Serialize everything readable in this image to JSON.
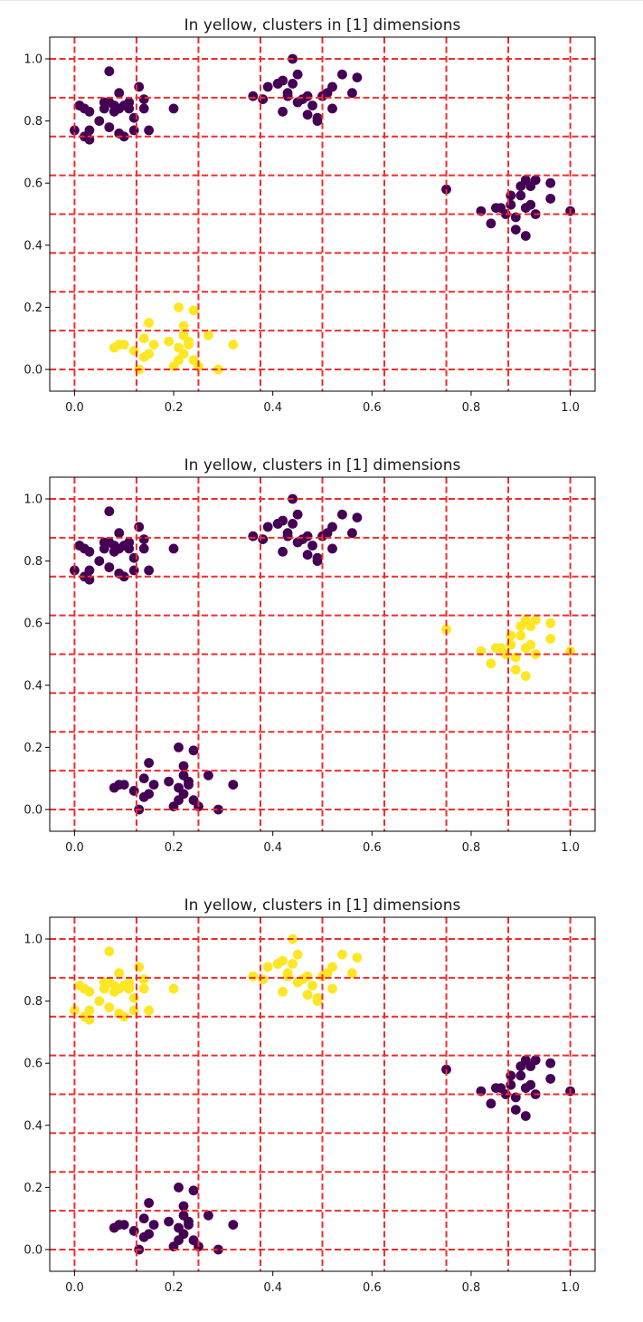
{
  "colors": {
    "highlight": "#fde725",
    "base": "#440154",
    "grid": "#ef2d2d",
    "axis": "#000000"
  },
  "chart_data": [
    {
      "type": "scatter",
      "title": "In yellow, clusters in [1] dimensions",
      "xlabel": "",
      "ylabel": "",
      "xlim": [
        -0.05,
        1.05
      ],
      "ylim": [
        -0.07,
        1.07
      ],
      "xticks": [
        0.0,
        0.2,
        0.4,
        0.6,
        0.8,
        1.0
      ],
      "xtick_labels": [
        "0.0",
        "0.2",
        "0.4",
        "0.6",
        "0.8",
        "1.0"
      ],
      "yticks": [
        0.0,
        0.2,
        0.4,
        0.6,
        0.8,
        1.0
      ],
      "ytick_labels": [
        "0.0",
        "0.2",
        "0.4",
        "0.6",
        "0.8",
        "1.0"
      ],
      "grid": "dashed red lines every 0.125 on both axes",
      "highlighted_cluster": "C"
    },
    {
      "type": "scatter",
      "title": "In yellow, clusters in [1] dimensions",
      "xlabel": "",
      "ylabel": "",
      "xlim": [
        -0.05,
        1.05
      ],
      "ylim": [
        -0.07,
        1.07
      ],
      "xticks": [
        0.0,
        0.2,
        0.4,
        0.6,
        0.8,
        1.0
      ],
      "xtick_labels": [
        "0.0",
        "0.2",
        "0.4",
        "0.6",
        "0.8",
        "1.0"
      ],
      "yticks": [
        0.0,
        0.2,
        0.4,
        0.6,
        0.8,
        1.0
      ],
      "ytick_labels": [
        "0.0",
        "0.2",
        "0.4",
        "0.6",
        "0.8",
        "1.0"
      ],
      "grid": "dashed red lines every 0.125 on both axes",
      "highlighted_cluster": "D"
    },
    {
      "type": "scatter",
      "title": "In yellow, clusters in [1] dimensions",
      "xlabel": "",
      "ylabel": "",
      "xlim": [
        -0.05,
        1.05
      ],
      "ylim": [
        -0.07,
        1.07
      ],
      "xticks": [
        0.0,
        0.2,
        0.4,
        0.6,
        0.8,
        1.0
      ],
      "xtick_labels": [
        "0.0",
        "0.2",
        "0.4",
        "0.6",
        "0.8",
        "1.0"
      ],
      "yticks": [
        0.0,
        0.2,
        0.4,
        0.6,
        0.8,
        1.0
      ],
      "ytick_labels": [
        "0.0",
        "0.2",
        "0.4",
        "0.6",
        "0.8",
        "1.0"
      ],
      "grid": "dashed red lines every 0.125 on both axes",
      "highlighted_cluster": "AB"
    }
  ],
  "gridlines": [
    0.0,
    0.125,
    0.25,
    0.375,
    0.5,
    0.625,
    0.75,
    0.875,
    1.0
  ],
  "clusters": {
    "A": [
      [
        0.0,
        0.77
      ],
      [
        0.01,
        0.85
      ],
      [
        0.02,
        0.84
      ],
      [
        0.03,
        0.83
      ],
      [
        0.02,
        0.75
      ],
      [
        0.03,
        0.77
      ],
      [
        0.03,
        0.74
      ],
      [
        0.05,
        0.8
      ],
      [
        0.06,
        0.86
      ],
      [
        0.06,
        0.84
      ],
      [
        0.07,
        0.96
      ],
      [
        0.07,
        0.86
      ],
      [
        0.07,
        0.78
      ],
      [
        0.08,
        0.85
      ],
      [
        0.08,
        0.83
      ],
      [
        0.09,
        0.89
      ],
      [
        0.09,
        0.84
      ],
      [
        0.09,
        0.76
      ],
      [
        0.1,
        0.85
      ],
      [
        0.1,
        0.75
      ],
      [
        0.11,
        0.84
      ],
      [
        0.11,
        0.86
      ],
      [
        0.12,
        0.81
      ],
      [
        0.12,
        0.77
      ],
      [
        0.13,
        0.91
      ],
      [
        0.14,
        0.84
      ],
      [
        0.14,
        0.87
      ],
      [
        0.15,
        0.77
      ],
      [
        0.2,
        0.84
      ]
    ],
    "B": [
      [
        0.36,
        0.88
      ],
      [
        0.38,
        0.87
      ],
      [
        0.39,
        0.91
      ],
      [
        0.41,
        0.92
      ],
      [
        0.41,
        0.92
      ],
      [
        0.42,
        0.83
      ],
      [
        0.42,
        0.93
      ],
      [
        0.43,
        0.88
      ],
      [
        0.43,
        0.89
      ],
      [
        0.44,
        1.0
      ],
      [
        0.44,
        0.92
      ],
      [
        0.45,
        0.95
      ],
      [
        0.45,
        0.86
      ],
      [
        0.46,
        0.87
      ],
      [
        0.47,
        0.82
      ],
      [
        0.47,
        0.88
      ],
      [
        0.48,
        0.85
      ],
      [
        0.49,
        0.81
      ],
      [
        0.49,
        0.8
      ],
      [
        0.5,
        0.88
      ],
      [
        0.51,
        0.89
      ],
      [
        0.52,
        0.84
      ],
      [
        0.52,
        0.91
      ],
      [
        0.54,
        0.95
      ],
      [
        0.56,
        0.89
      ],
      [
        0.57,
        0.94
      ]
    ],
    "C": [
      [
        0.08,
        0.07
      ],
      [
        0.09,
        0.08
      ],
      [
        0.1,
        0.08
      ],
      [
        0.12,
        0.06
      ],
      [
        0.13,
        0.0
      ],
      [
        0.14,
        0.1
      ],
      [
        0.14,
        0.04
      ],
      [
        0.15,
        0.15
      ],
      [
        0.15,
        0.05
      ],
      [
        0.16,
        0.08
      ],
      [
        0.19,
        0.09
      ],
      [
        0.2,
        0.01
      ],
      [
        0.21,
        0.2
      ],
      [
        0.21,
        0.07
      ],
      [
        0.21,
        0.03
      ],
      [
        0.22,
        0.14
      ],
      [
        0.22,
        0.11
      ],
      [
        0.22,
        0.05
      ],
      [
        0.23,
        0.09
      ],
      [
        0.23,
        0.08
      ],
      [
        0.24,
        0.19
      ],
      [
        0.24,
        0.03
      ],
      [
        0.25,
        0.01
      ],
      [
        0.27,
        0.11
      ],
      [
        0.29,
        0.0
      ],
      [
        0.32,
        0.08
      ]
    ],
    "D": [
      [
        0.75,
        0.58
      ],
      [
        0.82,
        0.51
      ],
      [
        0.84,
        0.47
      ],
      [
        0.85,
        0.52
      ],
      [
        0.86,
        0.52
      ],
      [
        0.87,
        0.5
      ],
      [
        0.88,
        0.56
      ],
      [
        0.88,
        0.53
      ],
      [
        0.89,
        0.45
      ],
      [
        0.89,
        0.49
      ],
      [
        0.9,
        0.59
      ],
      [
        0.9,
        0.56
      ],
      [
        0.91,
        0.61
      ],
      [
        0.91,
        0.52
      ],
      [
        0.91,
        0.43
      ],
      [
        0.92,
        0.59
      ],
      [
        0.92,
        0.53
      ],
      [
        0.93,
        0.61
      ],
      [
        0.93,
        0.5
      ],
      [
        0.96,
        0.6
      ],
      [
        0.96,
        0.55
      ],
      [
        1.0,
        0.51
      ]
    ]
  }
}
